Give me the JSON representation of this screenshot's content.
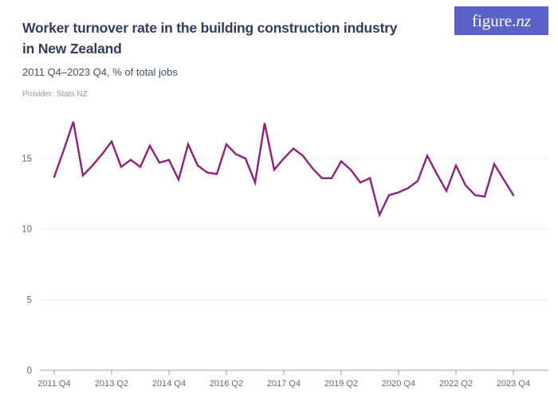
{
  "header": {
    "title_line1": "Worker turnover rate in the building construction industry",
    "title_line2": "in New Zealand",
    "subtitle": "2011 Q4–2023 Q4, % of total jobs",
    "provider": "Provider: Stats NZ",
    "logo": {
      "prefix": "figure.",
      "suffix": "nz"
    }
  },
  "colors": {
    "title": "#323b5e",
    "subtitle": "#44506e",
    "provider": "#8f939b",
    "logo_background": "#5a61c7",
    "logo_text": "#ffffff",
    "background": "#ffffff"
  },
  "chart_data": {
    "type": "line",
    "title": "Worker turnover rate in the building construction industry in New Zealand",
    "subtitle": "2011 Q4–2023 Q4, % of total jobs",
    "xlabel": "",
    "ylabel": "% of total jobs",
    "grid": true,
    "legend": false,
    "ylim": [
      0,
      18.3
    ],
    "yticks": [
      0,
      5,
      10,
      15
    ],
    "xtick_labels": [
      "2011 Q4",
      "2013 Q2",
      "2014 Q4",
      "2016 Q2",
      "2017 Q4",
      "2019 Q2",
      "2020 Q4",
      "2022 Q2",
      "2023 Q4"
    ],
    "x": [
      "2011 Q4",
      "2012 Q1",
      "2012 Q2",
      "2012 Q3",
      "2012 Q4",
      "2013 Q1",
      "2013 Q2",
      "2013 Q3",
      "2013 Q4",
      "2014 Q1",
      "2014 Q2",
      "2014 Q3",
      "2014 Q4",
      "2015 Q1",
      "2015 Q2",
      "2015 Q3",
      "2015 Q4",
      "2016 Q1",
      "2016 Q2",
      "2016 Q3",
      "2016 Q4",
      "2017 Q1",
      "2017 Q2",
      "2017 Q3",
      "2017 Q4",
      "2018 Q1",
      "2018 Q2",
      "2018 Q3",
      "2018 Q4",
      "2019 Q1",
      "2019 Q2",
      "2019 Q3",
      "2019 Q4",
      "2020 Q1",
      "2020 Q2",
      "2020 Q3",
      "2020 Q4",
      "2021 Q1",
      "2021 Q2",
      "2021 Q3",
      "2021 Q4",
      "2022 Q1",
      "2022 Q2",
      "2022 Q3",
      "2022 Q4",
      "2023 Q1",
      "2023 Q2",
      "2023 Q3",
      "2023 Q4"
    ],
    "series": [
      {
        "name": "Worker turnover rate",
        "values": [
          13.7,
          15.6,
          17.6,
          13.8,
          14.5,
          15.3,
          16.2,
          14.4,
          14.9,
          14.4,
          15.9,
          14.7,
          14.9,
          13.5,
          16.0,
          14.5,
          14.0,
          13.9,
          16.0,
          15.3,
          15.0,
          13.3,
          17.5,
          14.2,
          15.0,
          15.7,
          15.2,
          14.3,
          13.6,
          13.6,
          14.8,
          14.2,
          13.3,
          13.6,
          11.0,
          12.4,
          12.6,
          12.9,
          13.4,
          15.2,
          13.9,
          12.7,
          14.5,
          13.1,
          12.4,
          12.3,
          14.6,
          13.5,
          12.4
        ]
      }
    ],
    "line_color": "#8b2179",
    "grid_color": "#ececee",
    "axis_color": "#9aa0a8",
    "tick_label_color": "#5a6a88"
  }
}
